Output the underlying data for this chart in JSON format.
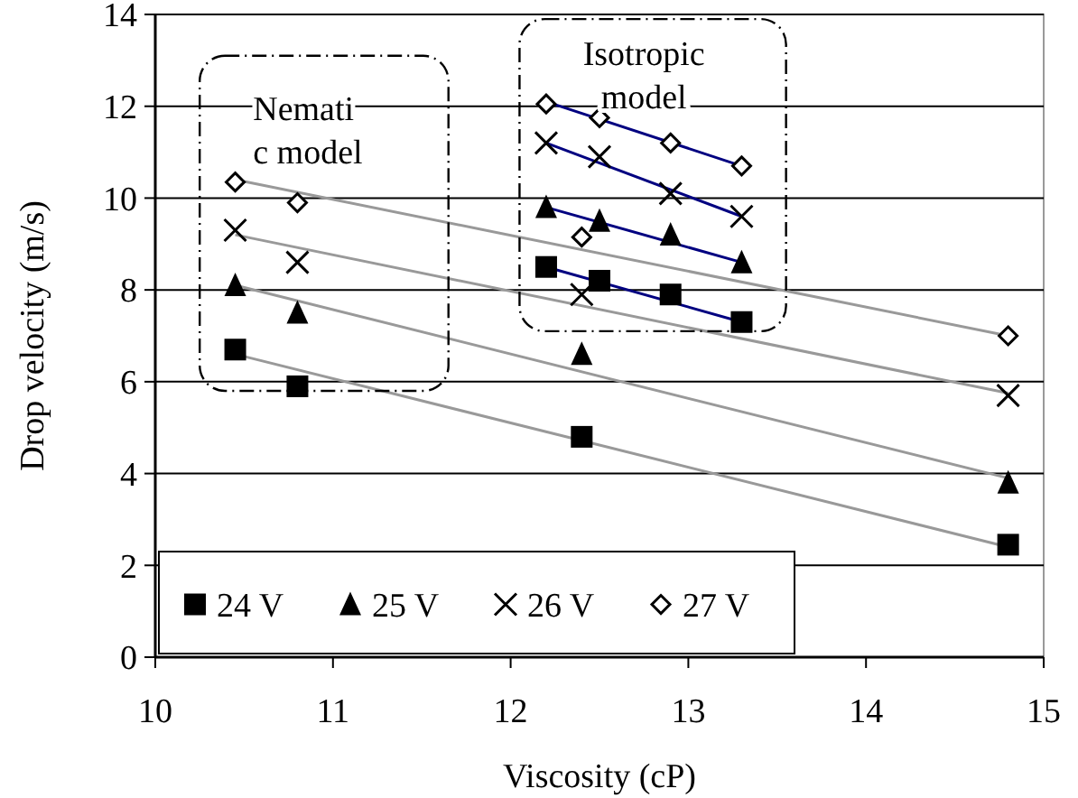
{
  "chart_data": {
    "type": "scatter",
    "xlabel": "Viscosity (cP)",
    "ylabel": "Drop velocity (m/s)",
    "xlim": [
      10,
      15
    ],
    "xticks": [
      10,
      11,
      12,
      13,
      14,
      15
    ],
    "ylim": [
      0,
      14
    ],
    "yticks": [
      0,
      2,
      4,
      6,
      8,
      10,
      12,
      14
    ],
    "grid": "y",
    "legend": "bottom left",
    "annotations": [
      "Nemati\nc model",
      "Isotropic\nmodel"
    ],
    "series": [
      {
        "name": "24 V",
        "color": "#000000",
        "marker": "square",
        "x": [
          10.45,
          10.8,
          12.2,
          12.4,
          12.5,
          12.9,
          13.3,
          14.8
        ],
        "values": [
          6.7,
          5.9,
          8.5,
          4.8,
          8.2,
          7.9,
          7.3,
          2.45
        ]
      },
      {
        "name": "25 V",
        "color": "#000000",
        "marker": "triangle",
        "x": [
          10.45,
          10.8,
          12.2,
          12.4,
          12.5,
          12.9,
          13.3,
          14.8
        ],
        "values": [
          8.1,
          7.5,
          9.8,
          6.6,
          9.5,
          9.2,
          8.6,
          3.8
        ]
      },
      {
        "name": "26 V",
        "color": "#000000",
        "marker": "cross",
        "x": [
          10.45,
          10.8,
          12.2,
          12.4,
          12.5,
          12.9,
          13.3,
          14.8
        ],
        "values": [
          9.3,
          8.6,
          11.2,
          7.9,
          10.9,
          10.1,
          9.6,
          5.7
        ]
      },
      {
        "name": "27 V",
        "color": "#000000",
        "marker": "diamond",
        "x": [
          10.45,
          10.8,
          12.2,
          12.4,
          12.5,
          12.9,
          13.3,
          14.8
        ],
        "values": [
          10.35,
          9.9,
          12.05,
          9.15,
          11.75,
          11.2,
          10.7,
          7.0
        ]
      },
      {
        "type": "line",
        "color": "#999999",
        "x": [
          10.45,
          14.8
        ],
        "values": [
          6.6,
          2.4
        ]
      },
      {
        "type": "line",
        "color": "#999999",
        "x": [
          10.45,
          14.8
        ],
        "values": [
          8.1,
          3.9
        ]
      },
      {
        "type": "line",
        "color": "#999999",
        "x": [
          10.45,
          14.8
        ],
        "values": [
          9.2,
          5.75
        ]
      },
      {
        "type": "line",
        "color": "#999999",
        "x": [
          10.45,
          14.8
        ],
        "values": [
          10.4,
          7.0
        ]
      },
      {
        "type": "line",
        "color": "#000080",
        "x": [
          12.2,
          13.3
        ],
        "values": [
          8.5,
          7.3
        ]
      },
      {
        "type": "line",
        "color": "#000080",
        "x": [
          12.2,
          13.3
        ],
        "values": [
          9.8,
          8.6
        ]
      },
      {
        "type": "line",
        "color": "#000080",
        "x": [
          12.2,
          13.3
        ],
        "values": [
          11.2,
          9.6
        ]
      },
      {
        "type": "line",
        "color": "#000080",
        "x": [
          12.2,
          13.3
        ],
        "values": [
          12.1,
          10.7
        ]
      }
    ]
  }
}
